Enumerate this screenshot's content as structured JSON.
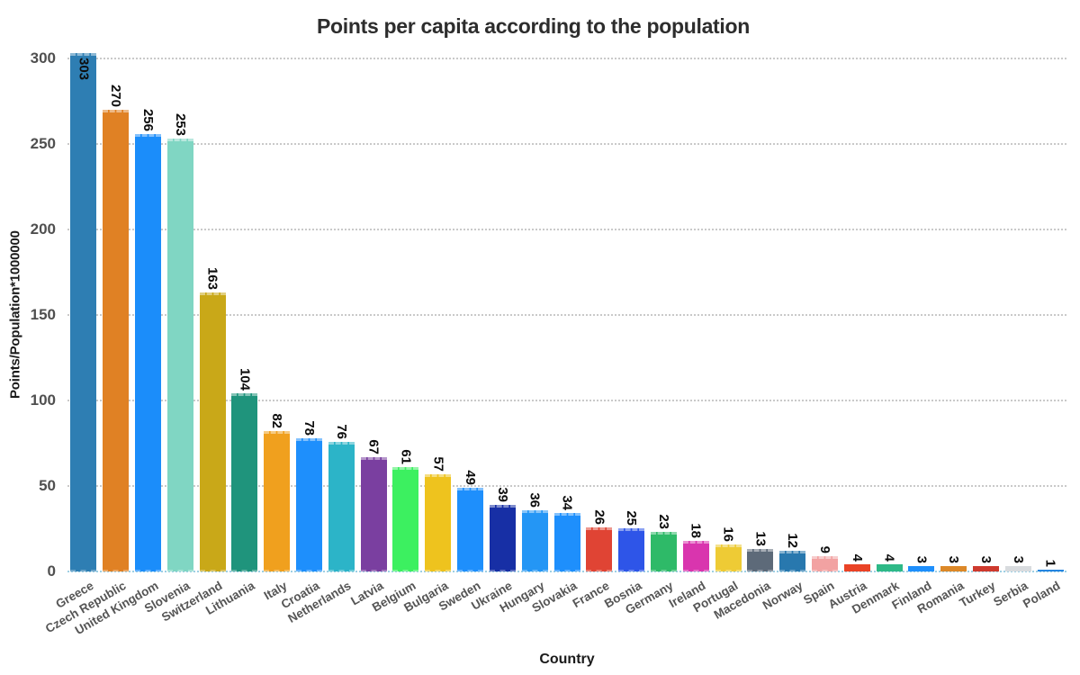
{
  "chart_data": {
    "type": "bar",
    "title": "Points per capita according to the population",
    "xlabel": "Country",
    "ylabel": "Points/Population*1000000",
    "ylim": [
      0,
      300
    ],
    "yticks": [
      0,
      50,
      100,
      150,
      200,
      250,
      300
    ],
    "grid": "horizontal dotted",
    "legend": "none",
    "categories": [
      "Greece",
      "Czech Republic",
      "United Kingdom",
      "Slovenia",
      "Switzerland",
      "Lithuania",
      "Italy",
      "Croatia",
      "Netherlands",
      "Latvia",
      "Belgium",
      "Bulgaria",
      "Sweden",
      "Ukraine",
      "Hungary",
      "Slovakia",
      "France",
      "Bosnia",
      "Germany",
      "Ireland",
      "Portugal",
      "Macedonia",
      "Norway",
      "Spain",
      "Austria",
      "Denmark",
      "Finland",
      "Romania",
      "Turkey",
      "Serbia",
      "Poland"
    ],
    "values": [
      303,
      270,
      256,
      253,
      163,
      104,
      82,
      78,
      76,
      67,
      61,
      57,
      49,
      39,
      36,
      34,
      26,
      25,
      23,
      18,
      16,
      13,
      12,
      9,
      4,
      4,
      3,
      3,
      3,
      3,
      1
    ],
    "colors": [
      "#2e7eb3",
      "#e08124",
      "#1b8dfa",
      "#80d6c3",
      "#c9a818",
      "#1f947c",
      "#f0a01e",
      "#1e8ffc",
      "#2cb4c8",
      "#7a3fa0",
      "#3cf060",
      "#eec31e",
      "#1e8ffc",
      "#172fa5",
      "#2496f5",
      "#1e8ffc",
      "#e04434",
      "#2e55e8",
      "#2eba68",
      "#d935ae",
      "#eecb35",
      "#5d6a79",
      "#2878ae",
      "#f2a2a2",
      "#ea4326",
      "#2eb987",
      "#1e8ffc",
      "#dc8828",
      "#ce3a2e",
      "#d8dbde",
      "#2585e0"
    ],
    "value_label_color": "#0d0d0d",
    "tick_label_color": "#4f4f4f",
    "gridline_color": "#c9c9c9",
    "baseline_color": "#9ecfe4"
  }
}
